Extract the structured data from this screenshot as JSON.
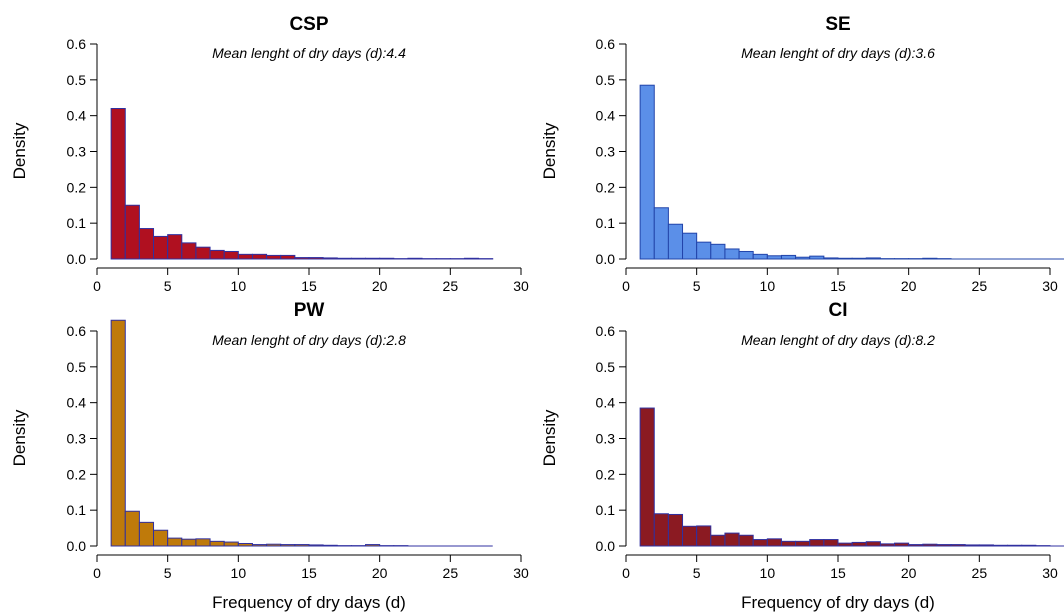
{
  "chart_data": [
    {
      "type": "bar",
      "title": "CSP",
      "subtitle": "Mean lenght of dry days (d):4.4",
      "xlabel": "",
      "ylabel": "Density",
      "xlim": [
        0,
        30
      ],
      "ylim": [
        0,
        0.6
      ],
      "xticks": [
        "0",
        "5",
        "10",
        "15",
        "20",
        "25",
        "30"
      ],
      "yticks": [
        "0.0",
        "0.1",
        "0.2",
        "0.3",
        "0.4",
        "0.5",
        "0.6"
      ],
      "bin_start": 1,
      "bin_width": 1,
      "data_end": 28,
      "fill": "#B01020",
      "edge": "#3030A0",
      "values": [
        0.42,
        0.15,
        0.085,
        0.063,
        0.068,
        0.045,
        0.033,
        0.024,
        0.021,
        0.013,
        0.013,
        0.01,
        0.01,
        0.004,
        0.004,
        0.003,
        0.002,
        0.002,
        0.002,
        0.002,
        0.001,
        0.002,
        0.001,
        0.001,
        0.001,
        0.002,
        0.001
      ]
    },
    {
      "type": "bar",
      "title": "SE",
      "subtitle": "Mean lenght of dry days (d):3.6",
      "xlabel": "",
      "ylabel": "Density",
      "xlim": [
        0,
        30
      ],
      "ylim": [
        0,
        0.6
      ],
      "xticks": [
        "0",
        "5",
        "10",
        "15",
        "20",
        "25",
        "30"
      ],
      "yticks": [
        "0.0",
        "0.1",
        "0.2",
        "0.3",
        "0.4",
        "0.5",
        "0.6"
      ],
      "bin_start": 1,
      "bin_width": 1,
      "data_end": 31,
      "fill": "#5B8FE8",
      "edge": "#2244AA",
      "values": [
        0.485,
        0.143,
        0.097,
        0.072,
        0.047,
        0.041,
        0.028,
        0.021,
        0.013,
        0.009,
        0.01,
        0.005,
        0.008,
        0.003,
        0.002,
        0.002,
        0.003,
        0.001,
        0.001,
        0.001,
        0.002,
        0.001
      ]
    },
    {
      "type": "bar",
      "title": "PW",
      "subtitle": "Mean lenght of dry days (d):2.8",
      "xlabel": "Frequency of dry days (d)",
      "ylabel": "Density",
      "xlim": [
        0,
        30
      ],
      "ylim": [
        0,
        0.6
      ],
      "xticks": [
        "0",
        "5",
        "10",
        "15",
        "20",
        "25",
        "30"
      ],
      "yticks": [
        "0.0",
        "0.1",
        "0.2",
        "0.3",
        "0.4",
        "0.5",
        "0.6"
      ],
      "bin_start": 1,
      "bin_width": 1,
      "data_end": 28,
      "fill": "#BF7A0A",
      "edge": "#3030A0",
      "values": [
        0.63,
        0.097,
        0.066,
        0.044,
        0.022,
        0.019,
        0.02,
        0.013,
        0.011,
        0.007,
        0.004,
        0.005,
        0.004,
        0.004,
        0.003,
        0.002,
        0.001,
        0.001,
        0.004,
        0.001,
        0.001
      ]
    },
    {
      "type": "bar",
      "title": "CI",
      "subtitle": "Mean lenght of dry days (d):8.2",
      "xlabel": "Frequency of dry days (d)",
      "ylabel": "Density",
      "xlim": [
        0,
        30
      ],
      "ylim": [
        0,
        0.6
      ],
      "xticks": [
        "0",
        "5",
        "10",
        "15",
        "20",
        "25",
        "30"
      ],
      "yticks": [
        "0.0",
        "0.1",
        "0.2",
        "0.3",
        "0.4",
        "0.5",
        "0.6"
      ],
      "bin_start": 1,
      "bin_width": 1,
      "data_end": 31,
      "fill": "#8B1A22",
      "edge": "#3030A0",
      "values": [
        0.385,
        0.09,
        0.088,
        0.055,
        0.056,
        0.03,
        0.036,
        0.03,
        0.018,
        0.02,
        0.013,
        0.013,
        0.018,
        0.018,
        0.008,
        0.01,
        0.012,
        0.006,
        0.008,
        0.004,
        0.005,
        0.004,
        0.004,
        0.003,
        0.003,
        0.002,
        0.002,
        0.002,
        0.001
      ]
    }
  ]
}
